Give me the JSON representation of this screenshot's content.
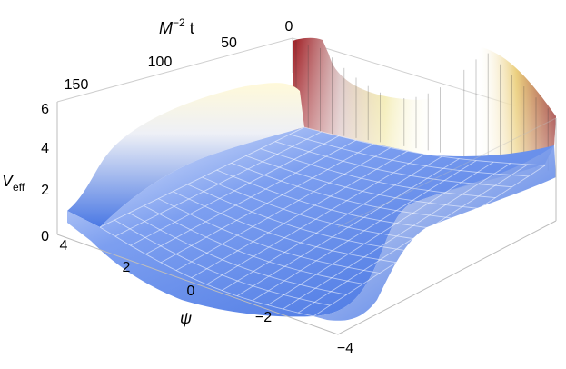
{
  "chart_data": {
    "type": "surface3d",
    "x_axis": {
      "label_main": "M",
      "label_sup": "−2",
      "label_suffix": "t",
      "ticks": [
        "0",
        "50",
        "100",
        "150"
      ],
      "range": [
        0,
        170
      ]
    },
    "y_axis": {
      "label": "ψ",
      "ticks": [
        "4",
        "2",
        "0",
        "−2",
        "−4"
      ],
      "range": [
        -4,
        4
      ]
    },
    "z_axis": {
      "label_main": "V",
      "label_sub": "eff",
      "ticks": [
        "0",
        "2",
        "4",
        "6"
      ],
      "range": [
        0,
        6
      ]
    },
    "surface_description": {
      "t_values": [
        0,
        25,
        50,
        75,
        100,
        125,
        150,
        170
      ],
      "psi_values": [
        -4,
        -3,
        -2,
        -1,
        0,
        1,
        2,
        3,
        4
      ],
      "notes": "Effective potential shaped like a trough in psi; walls rise at psi=±4 and at early t."
    },
    "colors": {
      "low": "#3f6fe0",
      "mid": "#f5f5f0",
      "high_yellow": "#e8d23a",
      "high_red": "#9e1a1a"
    },
    "grid": false,
    "box": true
  }
}
